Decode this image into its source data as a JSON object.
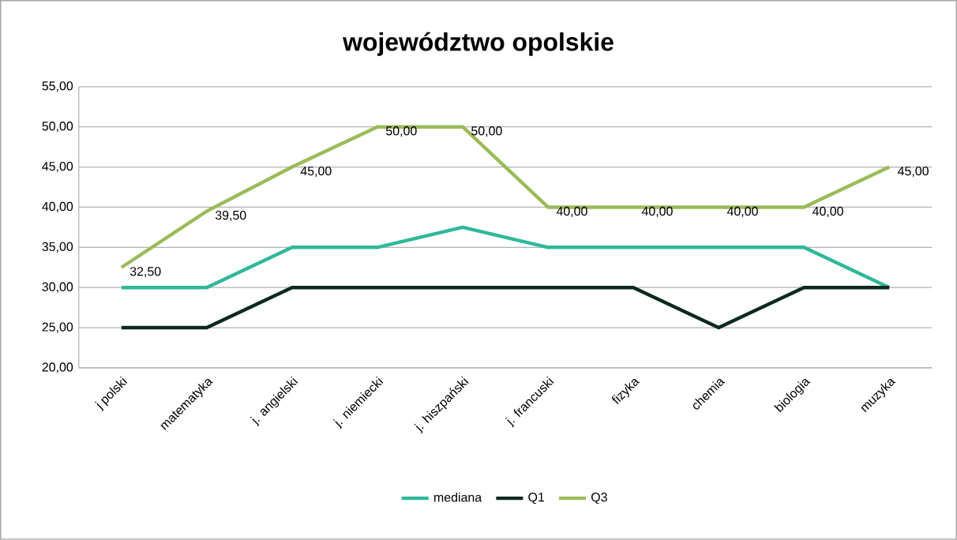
{
  "chart_data": {
    "type": "line",
    "title": "województwo opolskie",
    "categories": [
      "j polski",
      "matematyka",
      "j. angielski",
      "j. niemiecki",
      "j. hiszpański",
      "j. francuski",
      "fizyka",
      "chemia",
      "biologia",
      "muzyka"
    ],
    "series": [
      {
        "name": "mediana",
        "color": "#2fb899",
        "values": [
          30,
          30,
          35,
          35,
          37.5,
          35,
          35,
          35,
          35,
          30
        ]
      },
      {
        "name": "Q1",
        "color": "#0c2a1c",
        "values": [
          25,
          25,
          30,
          30,
          30,
          30,
          30,
          25,
          30,
          30
        ]
      },
      {
        "name": "Q3",
        "color": "#9bbb59",
        "values": [
          32.5,
          39.5,
          45,
          50,
          50,
          40,
          40,
          40,
          40,
          45
        ],
        "value_labels": [
          "32,50",
          "39,50",
          "45,00",
          "50,00",
          "50,00",
          "40,00",
          "40,00",
          "40,00",
          "40,00",
          "45,00"
        ]
      }
    ],
    "ylim": [
      20,
      55
    ],
    "yticks": [
      {
        "value": 20,
        "label": "20,00"
      },
      {
        "value": 25,
        "label": "25,00"
      },
      {
        "value": 30,
        "label": "30,00"
      },
      {
        "value": 35,
        "label": "35,00"
      },
      {
        "value": 40,
        "label": "40,00"
      },
      {
        "value": 45,
        "label": "45,00"
      },
      {
        "value": 50,
        "label": "50,00"
      },
      {
        "value": 55,
        "label": "55,00"
      }
    ],
    "grid": "y",
    "legend": "bottom",
    "marker": "none",
    "line_style": "solid"
  }
}
